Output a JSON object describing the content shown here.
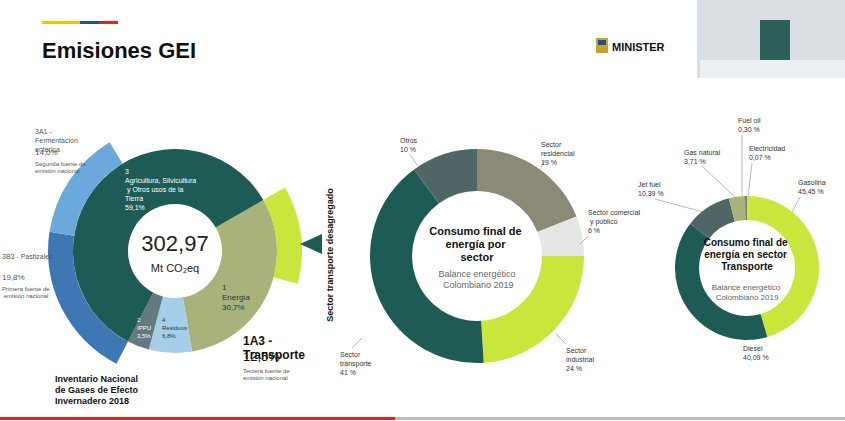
{
  "title": "Emisiones GEI",
  "logo_text": "MINISTER",
  "chart_data": [
    {
      "type": "pie",
      "title": "Inventario Nacional de Gases de Efecto Invernadero 2018",
      "total": 302.97,
      "total_label": "302,97",
      "unit": "Mt CO₂eq",
      "codes": [
        "1",
        "4",
        "2",
        "3"
      ],
      "categories": [
        "Energía",
        "Residuos",
        "IPPU",
        "Agricultura, Silvicultura y Otros usos de la Tierra"
      ],
      "values": [
        30.7,
        6.8,
        3.5,
        59.1
      ],
      "value_labels": [
        "30,7%",
        "6,8%",
        "3,5%",
        "59,1%"
      ],
      "colors": [
        "#a9b27a",
        "#a6cde9",
        "#627a80",
        "#1f5b55"
      ],
      "breakdown": [
        {
          "name": "1A3 - Transporte",
          "parent": "Energía",
          "value": 12.5,
          "value_label": "12,5%",
          "annotation": "Tercera fuente de emisión nacional",
          "color": "#c8e63c"
        },
        {
          "name": "3B3 - Pastizales",
          "parent": "Agricultura, Silvicultura y Otros usos de la Tierra",
          "value": 19.8,
          "value_label": "19,8%",
          "annotation": "Primera fuente de emisión nacional",
          "color": "#3f76b4"
        },
        {
          "name": "3A1 - Fermentación entérica",
          "parent": "Agricultura, Silvicultura y Otros usos de la Tierra",
          "value": 14.0,
          "value_label": "14,0%",
          "annotation": "Segunda fuente de emisión nacional",
          "color": "#6ba9dc"
        }
      ],
      "annotation": "Sector transporte desagregado"
    },
    {
      "type": "pie",
      "title": "Consumo final de energía por sector",
      "subtitle": "Balance energético Colombiano 2019",
      "categories": [
        "Sector residencial",
        "Sector comercial y público",
        "Sector industrial",
        "Sector transporte",
        "Otros"
      ],
      "values": [
        19,
        6,
        24,
        41,
        10
      ],
      "value_labels": [
        "19 %",
        "6 %",
        "24 %",
        "41 %",
        "10 %"
      ],
      "colors": [
        "#8a8a76",
        "#e6e6e6",
        "#c8e63c",
        "#1f5b55",
        "#4f6666"
      ]
    },
    {
      "type": "pie",
      "title": "Consumo final de energía en sector Transporte",
      "subtitle": "Balance energético Colombiano 2019",
      "categories": [
        "Gasolina",
        "Diesel",
        "Jet fuel",
        "Gas natural",
        "Fuel oil",
        "Electricidad"
      ],
      "values": [
        45.45,
        40.09,
        10.39,
        3.71,
        0.3,
        0.07
      ],
      "value_labels": [
        "45,45 %",
        "40,09 %",
        "10,39 %",
        "3,71 %",
        "0,30 %",
        "0,07 %"
      ],
      "colors": [
        "#c8e63c",
        "#1f5b55",
        "#4f6666",
        "#a9b27a",
        "#2e4a44",
        "#9aa0a0"
      ]
    }
  ]
}
